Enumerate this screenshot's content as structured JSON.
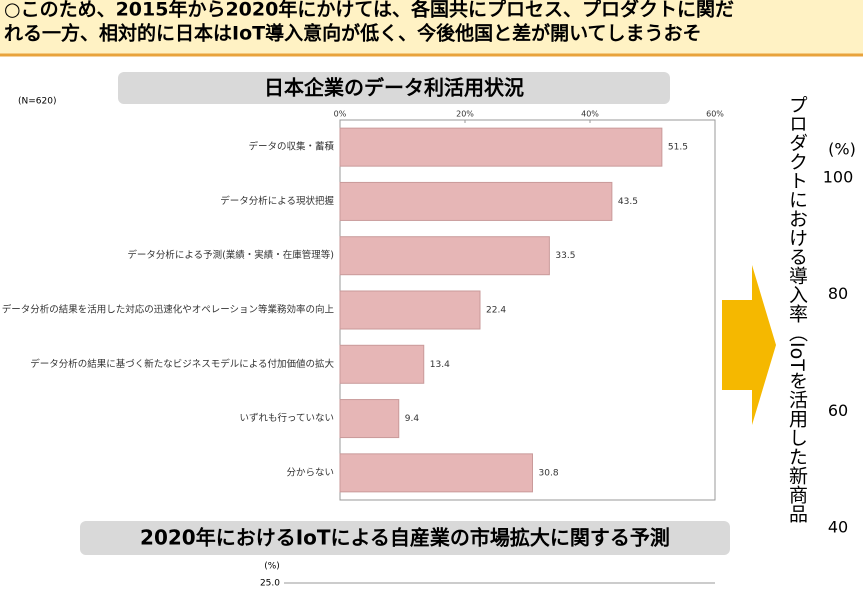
{
  "header": {
    "lines": [
      "○このため、2015年から2020年にかけては、各国共にプロセス、プロダクトに関だ",
      "れる一方、相対的に日本はIoT導入意向が低く、今後他国と差が開いてしまうおそ"
    ]
  },
  "chart_data": [
    {
      "type": "hbar",
      "title": "日本企業のデータ利活用状況",
      "note": "(N=620)",
      "categories": [
        "データの収集・蓄積",
        "データ分析による現状把握",
        "データ分析による予測(業績・実績・在庫管理等)",
        "データ分析の結果を活用した対応の迅速化やオペレーション等業務効率の向上",
        "データ分析の結果に基づく新たなビジネスモデルによる付加価値の拡大",
        "いずれも行っていない",
        "分からない"
      ],
      "values": [
        51.5,
        43.5,
        33.5,
        22.4,
        13.4,
        9.4,
        30.8
      ],
      "color": "#e6b6b6",
      "xlim": [
        0,
        60
      ],
      "xticks": [
        {
          "value": 0,
          "label": "0%"
        },
        {
          "value": 20,
          "label": "20%"
        },
        {
          "value": 40,
          "label": "40%"
        },
        {
          "value": 60,
          "label": "60%"
        }
      ]
    },
    {
      "type": "line",
      "title": "2020年におけるIoTによる自産業の市場拡大に関する予測",
      "y_label": "(%)",
      "yticks": [
        {
          "value": 25,
          "label": "25.0"
        }
      ]
    },
    {
      "type": "line",
      "y_label": "プロダクトにおける導入率（IoTを活用した新商品",
      "unit": "(%)",
      "ylim": [
        40,
        100
      ],
      "yticks": [
        100,
        80,
        60,
        40
      ]
    }
  ]
}
